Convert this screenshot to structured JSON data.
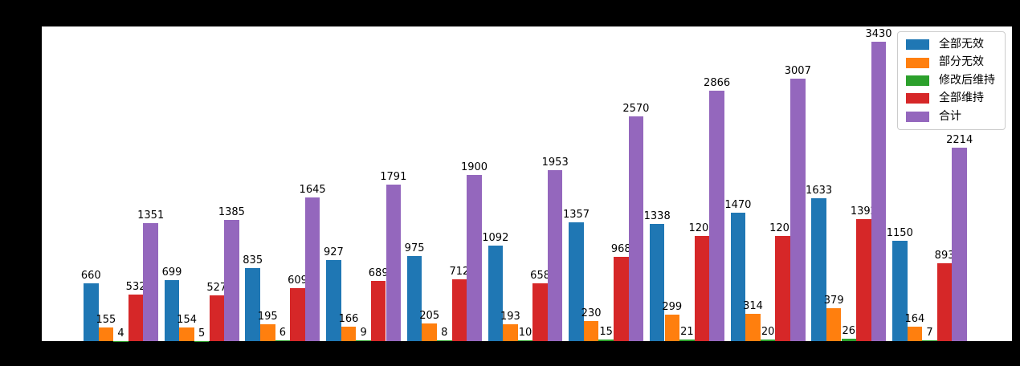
{
  "figure": {
    "background_color": "#000000",
    "plot_background_color": "#ffffff"
  },
  "chart_data": {
    "type": "bar",
    "title": "",
    "xlabel": "",
    "ylabel": "",
    "grid": false,
    "x_tick_labels_visible": false,
    "y_tick_labels_visible": false,
    "bar_value_labels": true,
    "ylim": [
      0,
      3600
    ],
    "legend_position": "upper right",
    "group_count": 11,
    "categories": [
      "",
      "",
      "",
      "",
      "",
      "",
      "",
      "",
      "",
      "",
      ""
    ],
    "series": [
      {
        "name": "全部无效",
        "color": "#1f77b4",
        "values": [
          660,
          699,
          835,
          927,
          975,
          1092,
          1357,
          1338,
          1470,
          1633,
          1150
        ]
      },
      {
        "name": "部分无效",
        "color": "#ff7f0e",
        "values": [
          155,
          154,
          195,
          166,
          205,
          193,
          230,
          299,
          314,
          379,
          164
        ]
      },
      {
        "name": "修改后维持",
        "color": "#2ca02c",
        "values": [
          4,
          5,
          6,
          9,
          8,
          10,
          15,
          21,
          20,
          26,
          7
        ]
      },
      {
        "name": "全部维持",
        "color": "#d62728",
        "values": [
          532,
          527,
          609,
          689,
          712,
          658,
          968,
          1208,
          1203,
          1392,
          893
        ]
      },
      {
        "name": "合计",
        "color": "#9467bd",
        "values": [
          1351,
          1385,
          1645,
          1791,
          1900,
          1953,
          2570,
          2866,
          3007,
          3430,
          2214
        ]
      }
    ]
  }
}
